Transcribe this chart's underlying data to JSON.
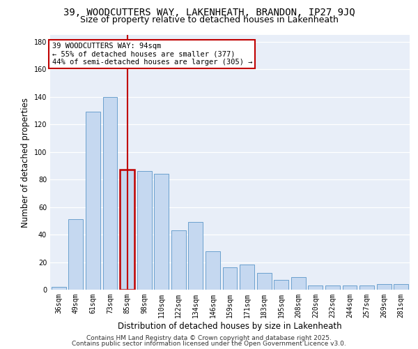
{
  "title1": "39, WOODCUTTERS WAY, LAKENHEATH, BRANDON, IP27 9JQ",
  "title2": "Size of property relative to detached houses in Lakenheath",
  "xlabel": "Distribution of detached houses by size in Lakenheath",
  "ylabel": "Number of detached properties",
  "categories": [
    "36sqm",
    "49sqm",
    "61sqm",
    "73sqm",
    "85sqm",
    "98sqm",
    "110sqm",
    "122sqm",
    "134sqm",
    "146sqm",
    "159sqm",
    "171sqm",
    "183sqm",
    "195sqm",
    "208sqm",
    "220sqm",
    "232sqm",
    "244sqm",
    "257sqm",
    "269sqm",
    "281sqm"
  ],
  "values": [
    2,
    51,
    129,
    140,
    87,
    86,
    84,
    43,
    49,
    28,
    16,
    18,
    12,
    7,
    9,
    3,
    3,
    3,
    3,
    4,
    4
  ],
  "bar_color": "#c5d8f0",
  "bar_edge_color": "#5a96c8",
  "highlight_bar_index": 4,
  "highlight_edge_color": "#c00000",
  "vline_color": "#c00000",
  "vline_x_index": 4,
  "annotation_text": "39 WOODCUTTERS WAY: 94sqm\n← 55% of detached houses are smaller (377)\n44% of semi-detached houses are larger (305) →",
  "annotation_box_color": "#ffffff",
  "annotation_box_edge": "#c00000",
  "ylim": [
    0,
    185
  ],
  "yticks": [
    0,
    20,
    40,
    60,
    80,
    100,
    120,
    140,
    160,
    180
  ],
  "bg_color": "#e8eef8",
  "footer1": "Contains HM Land Registry data © Crown copyright and database right 2025.",
  "footer2": "Contains public sector information licensed under the Open Government Licence v3.0.",
  "title1_fontsize": 10,
  "title2_fontsize": 9,
  "xlabel_fontsize": 8.5,
  "ylabel_fontsize": 8.5,
  "tick_fontsize": 7,
  "annotation_fontsize": 7.5,
  "footer_fontsize": 6.5
}
